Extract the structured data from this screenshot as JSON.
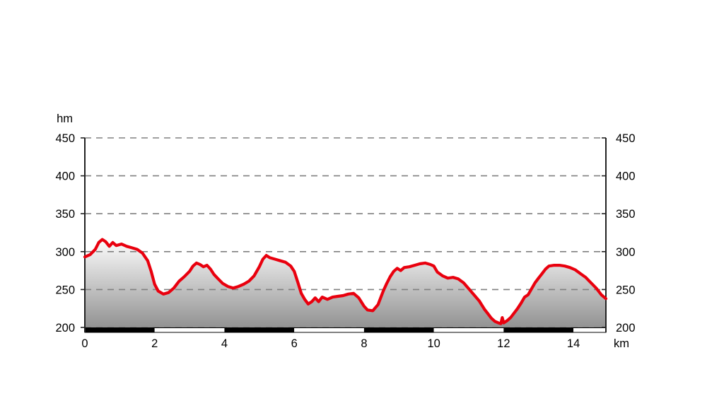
{
  "figure": {
    "background": "#ffffff"
  },
  "chart_data": {
    "type": "area",
    "title": "",
    "y_unit_label": "hm",
    "x_unit_label": "km",
    "x_ticks": [
      0,
      2,
      4,
      6,
      8,
      10,
      12,
      14
    ],
    "y_ticks": [
      200,
      250,
      300,
      350,
      400,
      450
    ],
    "xlim": [
      0,
      14.93
    ],
    "ylim": [
      200,
      450
    ],
    "grid": "horizontal-dashed",
    "legend": "none",
    "axes": "left-and-right-vertical",
    "colors": {
      "line": "#e9000e",
      "fill_gradient_top": "#fdfdfd",
      "fill_gradient_bottom": "#929292",
      "grid": "#808080",
      "axis": "#222222",
      "text": "#000000",
      "scalebar_black": "#000000",
      "scalebar_white": "#ffffff"
    },
    "scale_bar": {
      "description": "alternating black/white distance ruler under baseline",
      "interval_km": 2,
      "start_km": 0,
      "end_km": 14.93,
      "first_segment_color": "black"
    },
    "series": [
      {
        "name": "elevation-profile",
        "points_km_hm": [
          [
            0,
            293
          ],
          [
            0.15,
            296
          ],
          [
            0.3,
            303
          ],
          [
            0.4,
            312
          ],
          [
            0.5,
            316
          ],
          [
            0.6,
            313
          ],
          [
            0.7,
            307
          ],
          [
            0.8,
            312
          ],
          [
            0.9,
            308
          ],
          [
            1.05,
            310
          ],
          [
            1.2,
            307
          ],
          [
            1.35,
            305
          ],
          [
            1.5,
            303
          ],
          [
            1.65,
            298
          ],
          [
            1.8,
            288
          ],
          [
            1.9,
            274
          ],
          [
            2.0,
            257
          ],
          [
            2.1,
            248
          ],
          [
            2.25,
            244
          ],
          [
            2.4,
            246
          ],
          [
            2.55,
            252
          ],
          [
            2.7,
            261
          ],
          [
            2.85,
            267
          ],
          [
            3.0,
            274
          ],
          [
            3.1,
            281
          ],
          [
            3.2,
            285
          ],
          [
            3.3,
            283
          ],
          [
            3.4,
            280
          ],
          [
            3.5,
            282
          ],
          [
            3.6,
            277
          ],
          [
            3.7,
            270
          ],
          [
            3.8,
            265
          ],
          [
            3.95,
            258
          ],
          [
            4.1,
            254
          ],
          [
            4.25,
            252
          ],
          [
            4.4,
            254
          ],
          [
            4.55,
            257
          ],
          [
            4.7,
            261
          ],
          [
            4.85,
            268
          ],
          [
            5.0,
            280
          ],
          [
            5.1,
            290
          ],
          [
            5.2,
            295
          ],
          [
            5.3,
            292
          ],
          [
            5.45,
            290
          ],
          [
            5.6,
            288
          ],
          [
            5.75,
            286
          ],
          [
            5.9,
            281
          ],
          [
            6.0,
            274
          ],
          [
            6.1,
            260
          ],
          [
            6.2,
            245
          ],
          [
            6.3,
            237
          ],
          [
            6.4,
            231
          ],
          [
            6.5,
            234
          ],
          [
            6.6,
            239
          ],
          [
            6.7,
            234
          ],
          [
            6.8,
            240
          ],
          [
            6.95,
            237
          ],
          [
            7.1,
            240
          ],
          [
            7.25,
            241
          ],
          [
            7.4,
            242
          ],
          [
            7.55,
            244
          ],
          [
            7.7,
            245
          ],
          [
            7.85,
            239
          ],
          [
            8.0,
            228
          ],
          [
            8.1,
            223
          ],
          [
            8.25,
            222
          ],
          [
            8.4,
            230
          ],
          [
            8.55,
            248
          ],
          [
            8.65,
            258
          ],
          [
            8.75,
            267
          ],
          [
            8.85,
            274
          ],
          [
            8.95,
            278
          ],
          [
            9.05,
            275
          ],
          [
            9.15,
            279
          ],
          [
            9.3,
            280
          ],
          [
            9.45,
            282
          ],
          [
            9.6,
            284
          ],
          [
            9.75,
            285
          ],
          [
            9.9,
            283
          ],
          [
            10.0,
            281
          ],
          [
            10.1,
            273
          ],
          [
            10.25,
            268
          ],
          [
            10.4,
            265
          ],
          [
            10.55,
            266
          ],
          [
            10.7,
            264
          ],
          [
            10.85,
            259
          ],
          [
            11.0,
            251
          ],
          [
            11.15,
            243
          ],
          [
            11.3,
            235
          ],
          [
            11.45,
            224
          ],
          [
            11.55,
            218
          ],
          [
            11.65,
            212
          ],
          [
            11.75,
            208
          ],
          [
            11.85,
            206
          ],
          [
            11.92,
            205
          ],
          [
            11.96,
            213
          ],
          [
            12.0,
            206
          ],
          [
            12.1,
            209
          ],
          [
            12.2,
            213
          ],
          [
            12.3,
            219
          ],
          [
            12.4,
            225
          ],
          [
            12.5,
            232
          ],
          [
            12.6,
            240
          ],
          [
            12.7,
            243
          ],
          [
            12.8,
            251
          ],
          [
            12.9,
            259
          ],
          [
            13.0,
            265
          ],
          [
            13.1,
            271
          ],
          [
            13.2,
            277
          ],
          [
            13.3,
            281
          ],
          [
            13.45,
            282
          ],
          [
            13.6,
            282
          ],
          [
            13.75,
            281
          ],
          [
            13.9,
            279
          ],
          [
            14.05,
            276
          ],
          [
            14.2,
            271
          ],
          [
            14.35,
            266
          ],
          [
            14.5,
            259
          ],
          [
            14.65,
            252
          ],
          [
            14.8,
            243
          ],
          [
            14.93,
            238
          ]
        ]
      }
    ]
  }
}
